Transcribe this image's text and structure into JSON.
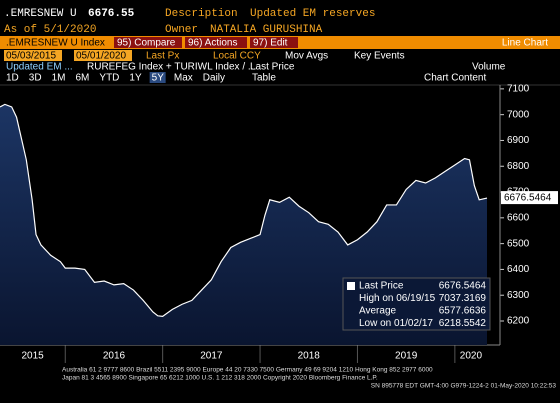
{
  "header": {
    "ticker": ".EMRESNEW U",
    "last": "6676.55",
    "description_label": "Description",
    "description": "Updated EM reserves",
    "asof": "As of 5/1/2020",
    "owner_label": "Owner",
    "owner": "NATALIA GURUSHINA"
  },
  "toolbar": {
    "security": ".EMRESNEW U Index",
    "compare": "95) Compare",
    "actions": "96) Actions",
    "edit": "97) Edit",
    "view": "Line Chart",
    "start": "05/03/2015",
    "end": "05/01/2020",
    "field": "Last Px",
    "currency": "Local CCY",
    "mov_avgs": "Mov Avgs",
    "key_events": "Key Events",
    "study": "Updated EM ...",
    "formula": "RUREFEG Index + TURIWL Index / ...",
    "last_price": "Last Price",
    "volume": "Volume",
    "periods": [
      "1D",
      "3D",
      "1M",
      "6M",
      "YTD",
      "1Y",
      "5Y",
      "Max"
    ],
    "frequency": "Daily",
    "table": "Table",
    "chart_content": "Chart Content"
  },
  "chart_data": {
    "type": "area",
    "color": "#ffffff",
    "x": [
      2015.33,
      2015.38,
      2015.45,
      2015.5,
      2015.6,
      2015.66,
      2015.7,
      2015.75,
      2015.85,
      2015.95,
      2016.0,
      2016.1,
      2016.2,
      2016.3,
      2016.4,
      2016.5,
      2016.6,
      2016.7,
      2016.8,
      2016.9,
      2016.95,
      2017.0,
      2017.1,
      2017.2,
      2017.3,
      2017.4,
      2017.5,
      2017.6,
      2017.7,
      2017.8,
      2017.9,
      2018.0,
      2018.05,
      2018.1,
      2018.2,
      2018.3,
      2018.4,
      2018.5,
      2018.6,
      2018.7,
      2018.8,
      2018.9,
      2019.0,
      2019.1,
      2019.2,
      2019.3,
      2019.4,
      2019.5,
      2019.6,
      2019.7,
      2019.8,
      2019.9,
      2020.0,
      2020.1,
      2020.15,
      2020.2,
      2020.25,
      2020.33
    ],
    "series": [
      {
        "name": "Last Price",
        "values": [
          7030,
          7040,
          7030,
          6990,
          6825,
          6670,
          6535,
          6495,
          6455,
          6430,
          6405,
          6405,
          6400,
          6350,
          6355,
          6340,
          6345,
          6320,
          6280,
          6235,
          6220,
          6218,
          6245,
          6265,
          6280,
          6320,
          6360,
          6430,
          6485,
          6505,
          6520,
          6535,
          6610,
          6670,
          6660,
          6680,
          6645,
          6620,
          6585,
          6575,
          6545,
          6495,
          6515,
          6545,
          6585,
          6650,
          6650,
          6710,
          6745,
          6735,
          6755,
          6780,
          6805,
          6830,
          6825,
          6725,
          6670,
          6676.5464
        ]
      }
    ],
    "xlim": [
      2015.33,
      2020.33
    ],
    "xticks": [
      {
        "value": 2015,
        "label": "2015"
      },
      {
        "value": 2016,
        "label": "2016"
      },
      {
        "value": 2017,
        "label": "2017"
      },
      {
        "value": 2018,
        "label": "2018"
      },
      {
        "value": 2019,
        "label": "2019"
      },
      {
        "value": 2020,
        "label": "2020"
      }
    ],
    "ylim": [
      6107,
      7115
    ],
    "yticks": [
      6200,
      6300,
      6400,
      6500,
      6600,
      6700,
      6800,
      6900,
      7000,
      7100
    ]
  },
  "legend": {
    "items": [
      {
        "label": "Last Price",
        "value": "6676.5464"
      },
      {
        "label": "High on 06/19/15",
        "value": "7037.3169"
      },
      {
        "label": "Average",
        "value": "6577.6636"
      },
      {
        "label": "Low on 01/02/17",
        "value": "6218.5542"
      }
    ]
  },
  "footer": {
    "line1": "Australia 61 2 9777 8600 Brazil 5511 2395 9000 Europe 44 20 7330 7500 Germany 49 69 9204 1210 Hong Kong 852 2977 6000",
    "line2": "Japan 81 3 4565 8900        Singapore 65 6212 1000        U.S. 1 212 318 2000        Copyright 2020 Bloomberg Finance L.P.",
    "line3": "SN 895778 EDT  GMT-4:00 G979-1224-2 01-May-2020 10:22:53"
  }
}
